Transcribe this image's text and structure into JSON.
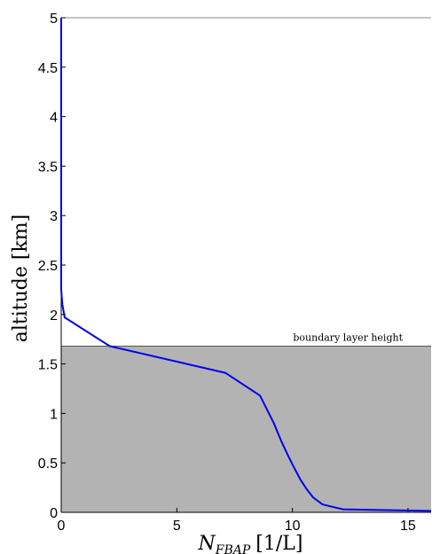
{
  "chart_data": {
    "type": "line",
    "xlabel": {
      "main": "N",
      "sub": "FBAP",
      "unit": "[1/L]"
    },
    "ylabel": "altitude [km]",
    "xlim": [
      0,
      16
    ],
    "ylim": [
      0,
      5
    ],
    "x_ticks": [
      0,
      5,
      10,
      15
    ],
    "x_tick_labels": [
      "0",
      "5",
      "10",
      "15"
    ],
    "y_ticks": [
      0,
      0.5,
      1,
      1.5,
      2,
      2.5,
      3,
      3.5,
      4,
      4.5,
      5
    ],
    "y_tick_labels": [
      "0",
      "0.5",
      "1",
      "1.5",
      "2",
      "2.5",
      "3",
      "3.5",
      "4",
      "4.5",
      "5"
    ],
    "grid": false,
    "colors": {
      "line": "#0000ee",
      "shade": "#b3b3b3",
      "boundary_line": "#555555"
    },
    "boundary_layer": {
      "height": 1.68,
      "label": "boundary layer height"
    },
    "series": [
      {
        "x": [
          0.0,
          0.0,
          0.0,
          0.0,
          0.05,
          0.15,
          2.1,
          7.1,
          8.6,
          9.2,
          9.5,
          9.8,
          10.1,
          10.35,
          10.6,
          10.9,
          11.3,
          12.2,
          16.0
        ],
        "y": [
          5.0,
          3.0,
          2.5,
          2.25,
          2.1,
          1.97,
          1.68,
          1.41,
          1.18,
          0.9,
          0.73,
          0.58,
          0.44,
          0.33,
          0.24,
          0.15,
          0.08,
          0.03,
          0.015
        ]
      }
    ]
  }
}
